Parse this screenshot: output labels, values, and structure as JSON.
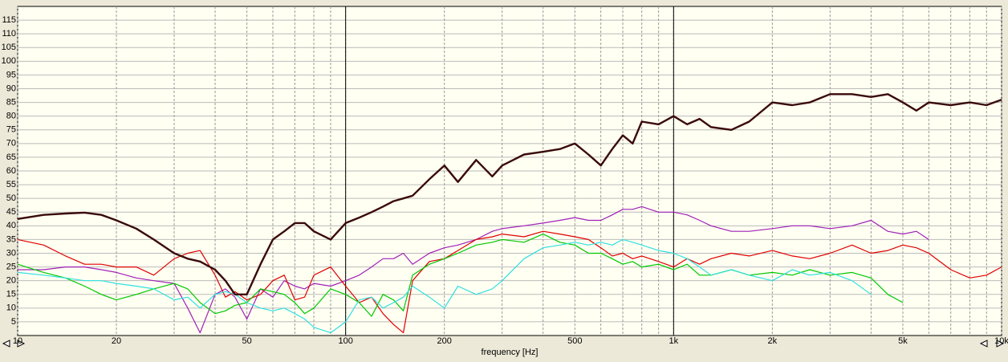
{
  "chart_data": {
    "type": "line",
    "xlabel": "frequency [Hz]",
    "xscale": "log",
    "grid": true,
    "xlim": [
      10,
      10000
    ],
    "ylim": [
      0,
      120
    ],
    "xticks": [
      10,
      20,
      50,
      100,
      200,
      500,
      {
        "value": 1000,
        "label": "1k"
      },
      {
        "value": 2000,
        "label": "2k"
      },
      {
        "value": 5000,
        "label": "5k"
      },
      {
        "value": 10000,
        "label": "10k"
      }
    ],
    "minor_xticks": [
      30,
      40,
      60,
      70,
      80,
      90,
      300,
      400,
      600,
      700,
      800,
      900,
      3000,
      4000,
      6000,
      7000,
      8000,
      9000
    ],
    "major_xlines": [
      100,
      1000
    ],
    "yticks": [
      5,
      10,
      15,
      20,
      25,
      30,
      35,
      40,
      45,
      50,
      55,
      60,
      65,
      70,
      75,
      80,
      85,
      90,
      95,
      100,
      105,
      110,
      115
    ],
    "x": [
      10,
      12,
      14,
      16,
      18,
      20,
      23,
      26,
      30,
      33,
      36,
      40,
      43,
      46,
      50,
      55,
      60,
      65,
      70,
      75,
      80,
      90,
      100,
      110,
      120,
      130,
      140,
      150,
      160,
      180,
      200,
      220,
      250,
      280,
      300,
      350,
      400,
      450,
      500,
      550,
      600,
      650,
      700,
      750,
      800,
      900,
      1000,
      1100,
      1200,
      1300,
      1500,
      1700,
      2000,
      2300,
      2600,
      3000,
      3500,
      4000,
      4500,
      5000,
      5500,
      6000,
      7000,
      8000,
      9000,
      10000
    ],
    "series": [
      {
        "color": "#a020b8",
        "width": 1.2,
        "values": [
          24,
          24,
          25,
          25,
          24,
          23,
          21,
          20,
          19,
          10,
          1,
          15,
          17,
          14,
          6,
          17,
          14,
          20,
          18,
          17,
          19,
          18,
          20,
          22,
          25,
          28,
          28,
          30,
          26,
          30,
          32,
          33,
          35,
          38,
          39,
          40,
          41,
          42,
          43,
          42,
          42,
          44,
          46,
          46,
          47,
          45,
          45,
          44,
          42,
          40,
          38,
          38,
          39,
          40,
          40,
          39,
          40,
          42,
          38,
          37,
          38,
          35,
          null,
          null,
          null,
          null
        ]
      },
      {
        "color": "#e00000",
        "width": 1.2,
        "values": [
          35,
          33,
          29,
          26,
          26,
          25,
          25,
          22,
          28,
          30,
          31,
          22,
          14,
          16,
          13,
          15,
          20,
          22,
          13,
          14,
          22,
          25,
          18,
          12,
          14,
          8,
          4,
          1,
          20,
          27,
          28,
          31,
          35,
          36,
          37,
          36,
          38,
          37,
          36,
          35,
          32,
          29,
          30,
          28,
          29,
          27,
          25,
          28,
          26,
          28,
          30,
          29,
          31,
          29,
          28,
          30,
          33,
          30,
          31,
          33,
          32,
          30,
          24,
          21,
          22,
          25
        ]
      },
      {
        "color": "#00c800",
        "width": 1.2,
        "values": [
          26,
          23,
          21,
          18,
          15,
          13,
          15,
          17,
          19,
          17,
          12,
          8,
          9,
          11,
          12,
          17,
          16,
          15,
          12,
          8,
          10,
          17,
          15,
          12,
          7,
          15,
          13,
          9,
          22,
          26,
          28,
          30,
          33,
          34,
          35,
          34,
          37,
          34,
          33,
          30,
          30,
          28,
          26,
          27,
          25,
          26,
          24,
          26,
          22,
          22,
          24,
          22,
          23,
          22,
          24,
          22,
          23,
          21,
          15,
          12,
          null,
          null,
          null,
          null,
          null,
          null
        ]
      },
      {
        "color": "#30e0e0",
        "width": 1.2,
        "values": [
          23,
          22,
          21,
          20,
          20,
          19,
          18,
          17,
          13,
          14,
          10,
          15,
          16,
          15,
          12,
          10,
          9,
          10,
          8,
          6,
          3,
          1,
          5,
          13,
          14,
          10,
          12,
          14,
          18,
          14,
          10,
          18,
          15,
          17,
          20,
          28,
          32,
          33,
          34,
          33,
          34,
          33,
          35,
          34,
          33,
          31,
          30,
          28,
          25,
          22,
          24,
          22,
          20,
          24,
          22,
          23,
          20,
          15,
          null,
          null,
          null,
          null,
          null,
          null,
          null,
          null
        ]
      },
      {
        "color": "#3a0a0a",
        "width": 2.4,
        "values": [
          42.5,
          44,
          44.5,
          44.8,
          44,
          42,
          39,
          35,
          30,
          28,
          27,
          24,
          20,
          15,
          15,
          26,
          35,
          38,
          41,
          41,
          38,
          35,
          41,
          43,
          45,
          47,
          49,
          50,
          51,
          57,
          62,
          56,
          64,
          58,
          62,
          66,
          67,
          68,
          70,
          66,
          62,
          68,
          73,
          70,
          78,
          77,
          80,
          77,
          79,
          76,
          75,
          78,
          85,
          84,
          85,
          88,
          88,
          87,
          88,
          85,
          82,
          85,
          84,
          85,
          84,
          86
        ]
      }
    ]
  }
}
